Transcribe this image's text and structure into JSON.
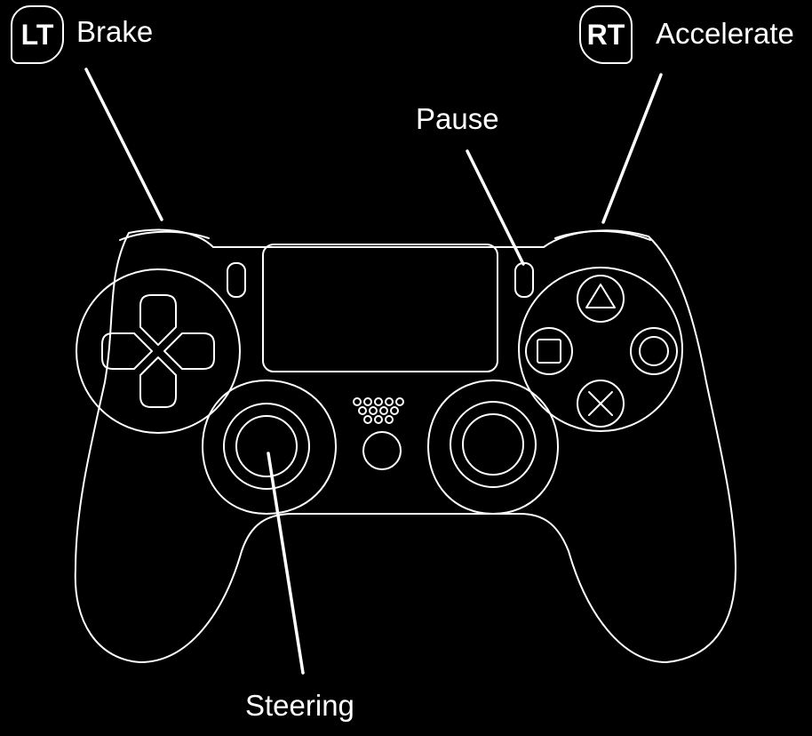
{
  "badges": {
    "left_trigger": "LT",
    "right_trigger": "RT"
  },
  "labels": {
    "brake": "Brake",
    "accelerate": "Accelerate",
    "pause": "Pause",
    "steering": "Steering"
  },
  "colors": {
    "background": "#000000",
    "foreground": "#ffffff"
  },
  "icons": [
    "dpad-icon",
    "triangle-icon",
    "square-icon",
    "circle-icon",
    "cross-icon",
    "speaker-icon"
  ]
}
